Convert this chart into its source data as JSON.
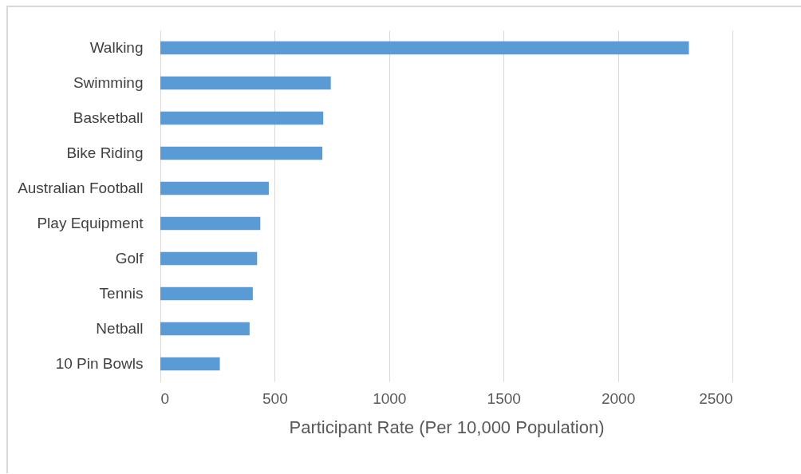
{
  "chart_data": {
    "type": "bar",
    "orientation": "horizontal",
    "xlabel": "Participant Rate (Per 10,000 Population)",
    "categories": [
      "Walking",
      "Swimming",
      "Basketball",
      "Bike Riding",
      "Australian Football",
      "Play Equipment",
      "Golf",
      "Tennis",
      "Netball",
      "10 Pin Bowls"
    ],
    "values": [
      2310,
      745,
      712,
      708,
      474,
      437,
      423,
      404,
      390,
      260
    ],
    "color": "#5b9bd5",
    "xlim": [
      0,
      2500
    ],
    "xticks": [
      0,
      500,
      1000,
      1500,
      2000,
      2500
    ],
    "grid": "x"
  }
}
